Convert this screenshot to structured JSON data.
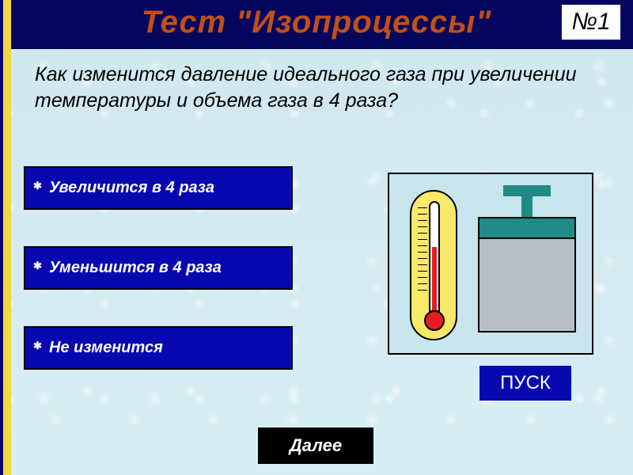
{
  "header": {
    "title": "Тест \"Изопроцессы\"",
    "question_number": "№1"
  },
  "question": {
    "text": "Как изменится давление идеального газа при увеличении температуры и объема газа в 4 раза?"
  },
  "answers": [
    {
      "label": "Увеличится в 4 раза"
    },
    {
      "label": "Уменьшится в 4 раза"
    },
    {
      "label": "Не изменится"
    }
  ],
  "buttons": {
    "start": "ПУСК",
    "next": "Далее"
  },
  "colors": {
    "header_bg": "#06065e",
    "accent_yellow": "#f5d742",
    "answer_bg": "#0808b0",
    "title_color": "#c05018",
    "piston_green": "#1f8a86",
    "piston_grey": "#b8bfc4",
    "thermo_yellow": "#f9e96b",
    "fluid_red": "#e02020",
    "page_bg": "#d0e8f0"
  },
  "illustration": {
    "type": "infographic",
    "components": [
      "thermometer",
      "piston-cylinder"
    ]
  }
}
